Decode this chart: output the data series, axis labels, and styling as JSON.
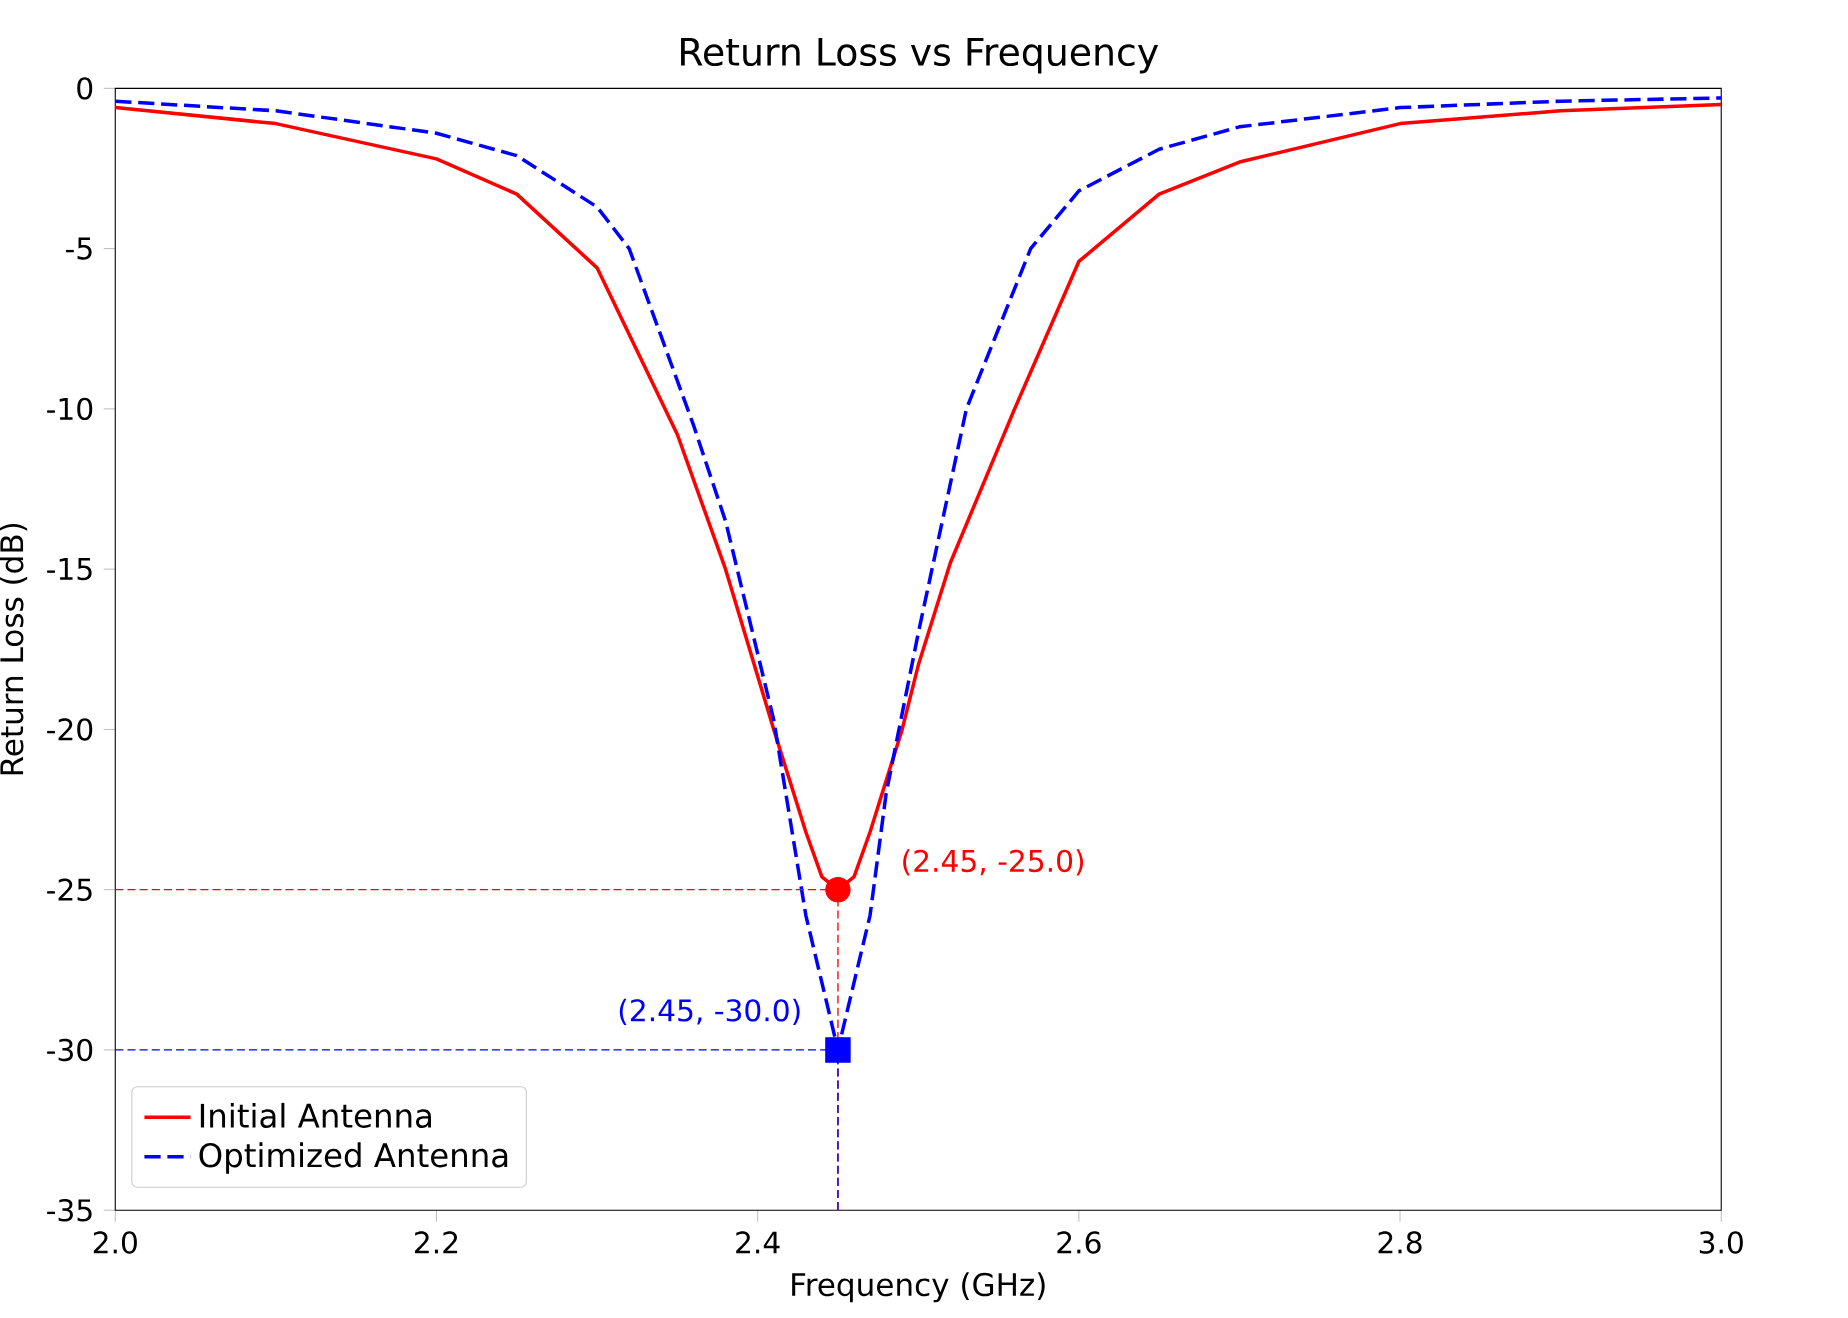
{
  "chart_data": {
    "type": "line",
    "title": "Return Loss vs Frequency",
    "xlabel": "Frequency (GHz)",
    "ylabel": "Return Loss (dB)",
    "xlim": [
      2.0,
      3.0
    ],
    "ylim": [
      -35,
      0
    ],
    "xticks": [
      {
        "value": 2.0,
        "label": "2.0"
      },
      2.2,
      2.4,
      2.6,
      2.8,
      {
        "value": 3.0,
        "label": "3.0"
      }
    ],
    "yticks": [
      -35,
      -30,
      -25,
      -20,
      -15,
      -10,
      -5,
      0
    ],
    "grid": false,
    "legend": "bottom left",
    "series": [
      {
        "name": "Initial Antenna",
        "color": "#ff0000",
        "line_style": "solid",
        "x": [
          2.0,
          2.1,
          2.2,
          2.25,
          2.3,
          2.35,
          2.38,
          2.41,
          2.43,
          2.44,
          2.45,
          2.46,
          2.47,
          2.49,
          2.5,
          2.52,
          2.56,
          2.6,
          2.65,
          2.7,
          2.8,
          2.9,
          3.0
        ],
        "values": [
          -0.6,
          -1.1,
          -2.2,
          -3.3,
          -5.6,
          -10.8,
          -15,
          -20,
          -23.2,
          -24.6,
          -25,
          -24.6,
          -23.2,
          -20,
          -18,
          -14.8,
          -10,
          -5.4,
          -3.3,
          -2.3,
          -1.1,
          -0.7,
          -0.5
        ]
      },
      {
        "name": "Optimized Antenna",
        "color": "#0000ff",
        "line_style": "dashed",
        "x": [
          2.0,
          2.1,
          2.2,
          2.25,
          2.3,
          2.32,
          2.36,
          2.38,
          2.41,
          2.43,
          2.45,
          2.47,
          2.48,
          2.5,
          2.53,
          2.57,
          2.6,
          2.65,
          2.7,
          2.8,
          2.9,
          3.0
        ],
        "values": [
          -0.4,
          -0.7,
          -1.4,
          -2.1,
          -3.7,
          -5,
          -10.5,
          -13.5,
          -19.7,
          -25.8,
          -30,
          -25.8,
          -22,
          -17,
          -10,
          -5,
          -3.2,
          -1.9,
          -1.2,
          -0.6,
          -0.4,
          -0.3
        ]
      },
      {
        "type": "scatter",
        "marker": "circle",
        "color": "#ff0000",
        "x": [
          2.45
        ],
        "values": [
          -25
        ]
      },
      {
        "type": "scatter",
        "marker": "square",
        "color": "#0000ff",
        "x": [
          2.45
        ],
        "values": [
          -30
        ]
      }
    ],
    "ref_lines": [
      {
        "axis": "y",
        "value": -25,
        "color": "#ff0000",
        "line_style": "dashed"
      },
      {
        "axis": "x",
        "value": 2.45,
        "color": "#ff0000",
        "line_style": "dashed"
      },
      {
        "axis": "y",
        "value": -30,
        "color": "#0000ff",
        "line_style": "dashed"
      },
      {
        "axis": "x",
        "value": 2.45,
        "color": "#0000ff",
        "line_style": "dashed"
      }
    ],
    "annotations": [
      {
        "text": "(2.45, -25.0)",
        "x": 2.45,
        "y": -25
      },
      {
        "text": "(2.45, -30.0)",
        "x": 2.45,
        "y": -30
      }
    ]
  }
}
